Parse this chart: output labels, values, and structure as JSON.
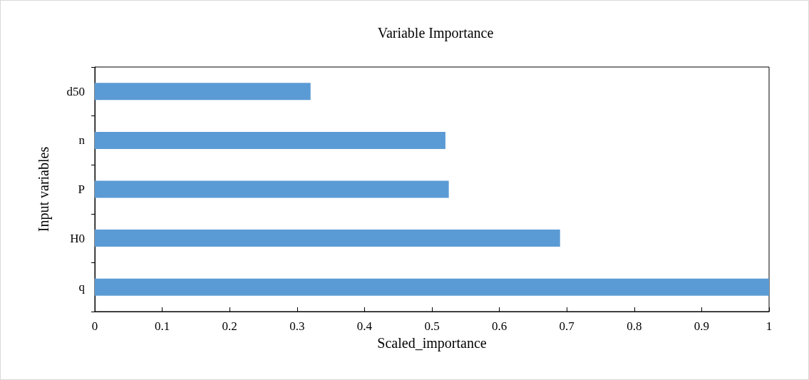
{
  "chart_data": {
    "type": "bar",
    "orientation": "horizontal",
    "title": "Variable Importance",
    "xlabel": "Scaled_importance",
    "ylabel": "Input variables",
    "categories": [
      "d50",
      "n",
      "P",
      "H0",
      "q"
    ],
    "values": [
      0.32,
      0.52,
      0.525,
      0.69,
      1
    ],
    "color": "#5b9bd5",
    "xlim": [
      0,
      1
    ],
    "xticks": [
      0,
      0.1,
      0.2,
      0.3,
      0.4,
      0.5,
      0.6,
      0.7,
      0.8,
      0.9,
      1
    ],
    "grid": false
  }
}
